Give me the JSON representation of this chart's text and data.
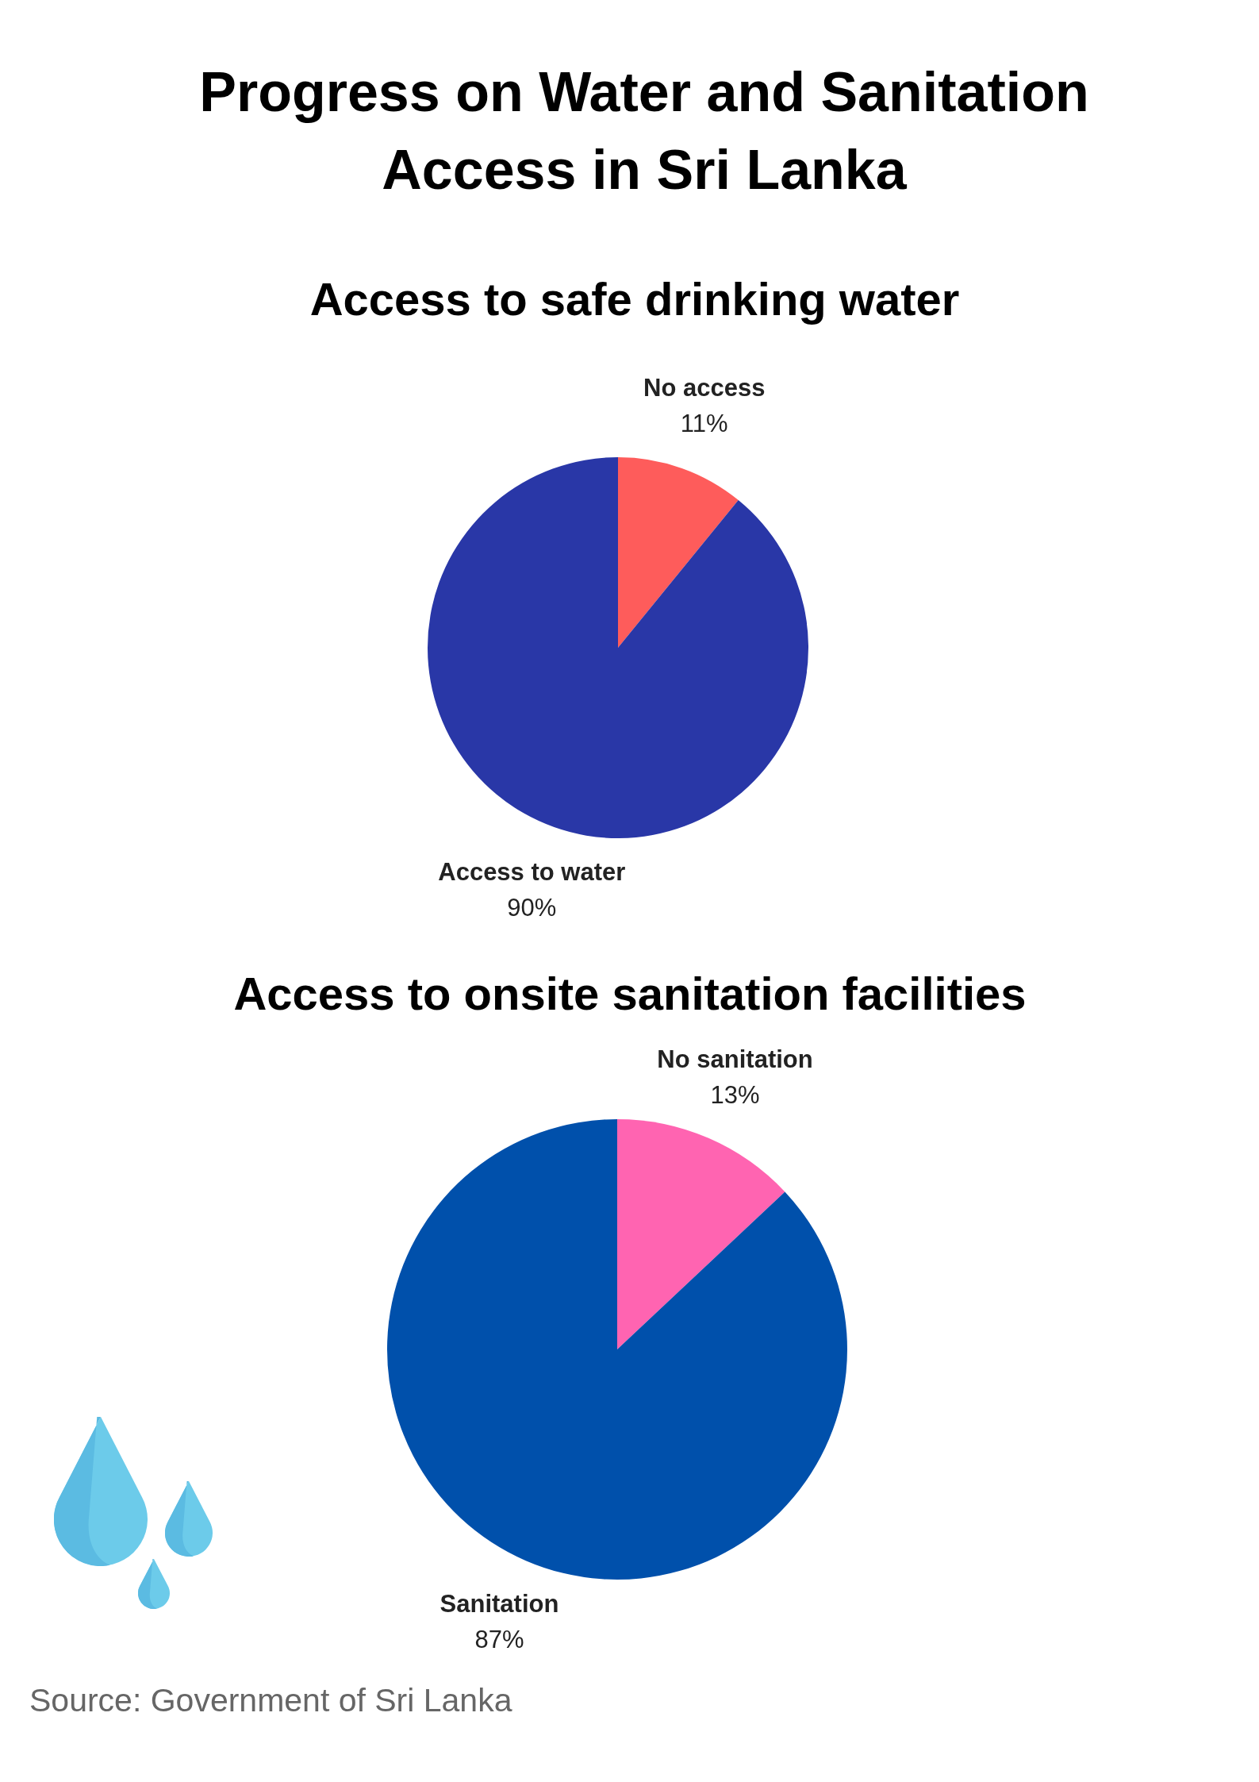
{
  "chart_data": [
    {
      "type": "pie",
      "title": "Progress on Water and Sanitation Access in Sri Lanka",
      "subtitle": "Access to safe drinking water",
      "categories": [
        "No access",
        "Access to water"
      ],
      "values": [
        11,
        90
      ],
      "colors": [
        "#fe5c5b",
        "#2937a7"
      ],
      "value_labels": [
        "11%",
        "90%"
      ]
    },
    {
      "type": "pie",
      "title": "Access to onsite sanitation facilities",
      "categories": [
        "No sanitation",
        "Sanitation"
      ],
      "values": [
        13,
        87
      ],
      "colors": [
        "#ff64b1",
        "#0050ab"
      ],
      "value_labels": [
        "13%",
        "87%"
      ],
      "annotations": [
        "Source: Government of Sri Lanka"
      ]
    }
  ]
}
